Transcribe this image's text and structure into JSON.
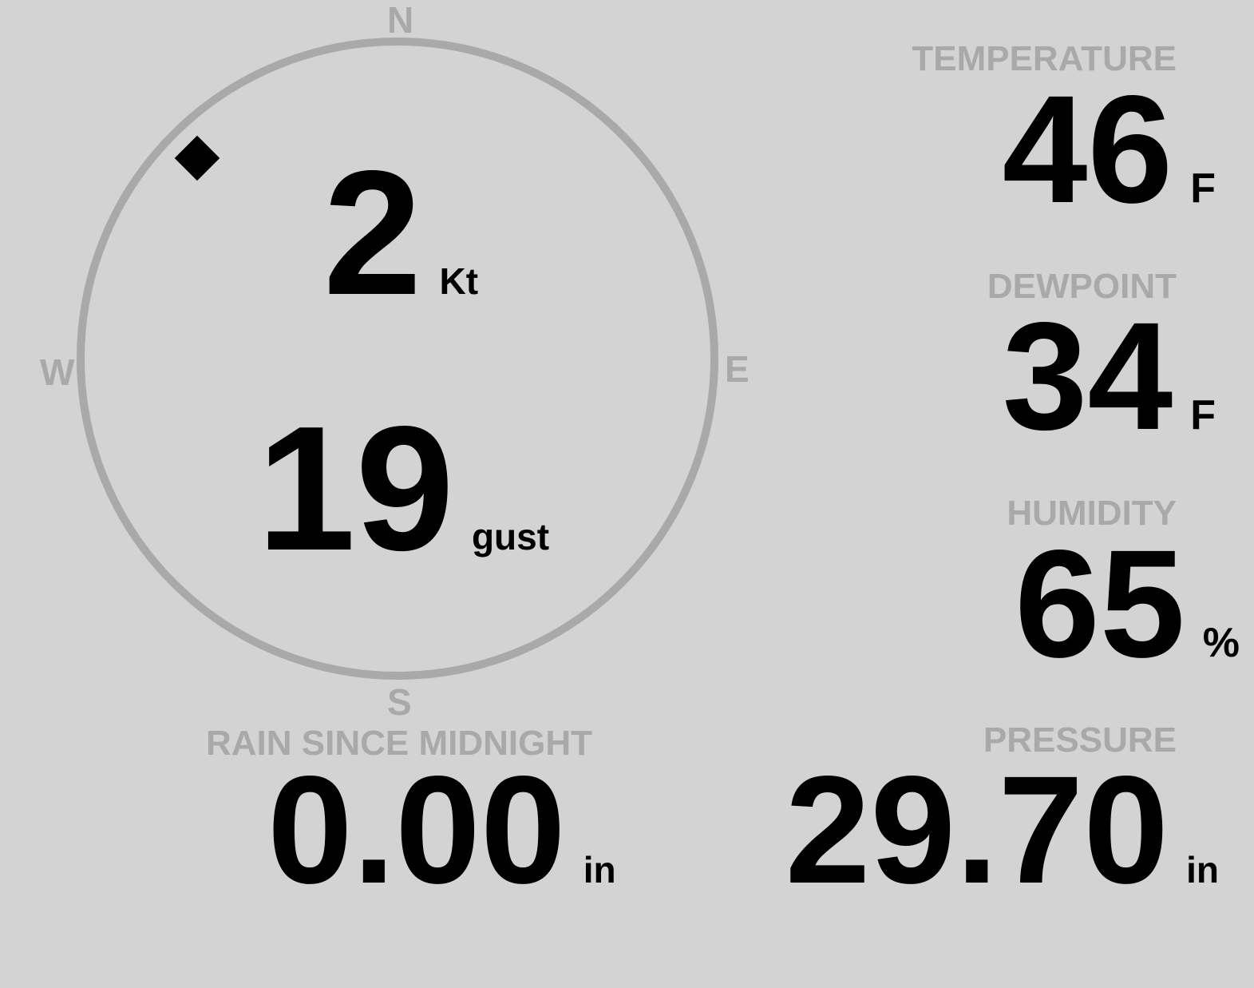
{
  "wind": {
    "direction_deg": 315,
    "speed": "2",
    "speed_unit": "Kt",
    "gust": "19",
    "gust_unit": "gust",
    "cardinals": {
      "n": "N",
      "e": "E",
      "s": "S",
      "w": "W"
    }
  },
  "temperature": {
    "label": "TEMPERATURE",
    "value": "46",
    "unit": "F"
  },
  "dewpoint": {
    "label": "DEWPOINT",
    "value": "34",
    "unit": "F"
  },
  "humidity": {
    "label": "HUMIDITY",
    "value": "65",
    "unit": "%"
  },
  "rain": {
    "label": "RAIN SINCE MIDNIGHT",
    "value": "0.00",
    "unit": "in"
  },
  "pressure": {
    "label": "PRESSURE",
    "value": "29.70",
    "unit": "in"
  },
  "colors": {
    "background": "#d3d3d3",
    "muted": "#a9a9a9",
    "text": "#000000"
  }
}
